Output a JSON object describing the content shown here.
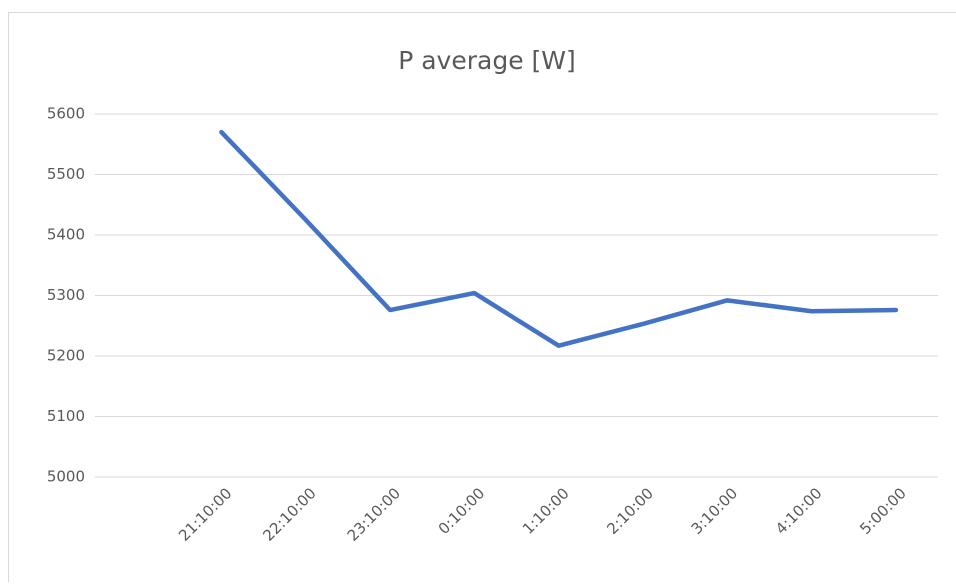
{
  "chart_data": {
    "type": "line",
    "title": "P average [W]",
    "categories": [
      null,
      "21:10:00",
      "22:10:00",
      "23:10:00",
      "0:10:00",
      "1:10:00",
      "2:10:00",
      "3:10:00",
      "4:10:00",
      "5:00:00"
    ],
    "values": [
      null,
      5570,
      5425,
      5276,
      5304,
      5217,
      5253,
      5292,
      5274,
      5276
    ],
    "color": "#4472c4",
    "ylim": [
      5000,
      5600
    ],
    "yticks": [
      5000,
      5100,
      5200,
      5300,
      5400,
      5500,
      5600
    ],
    "grid": true
  }
}
